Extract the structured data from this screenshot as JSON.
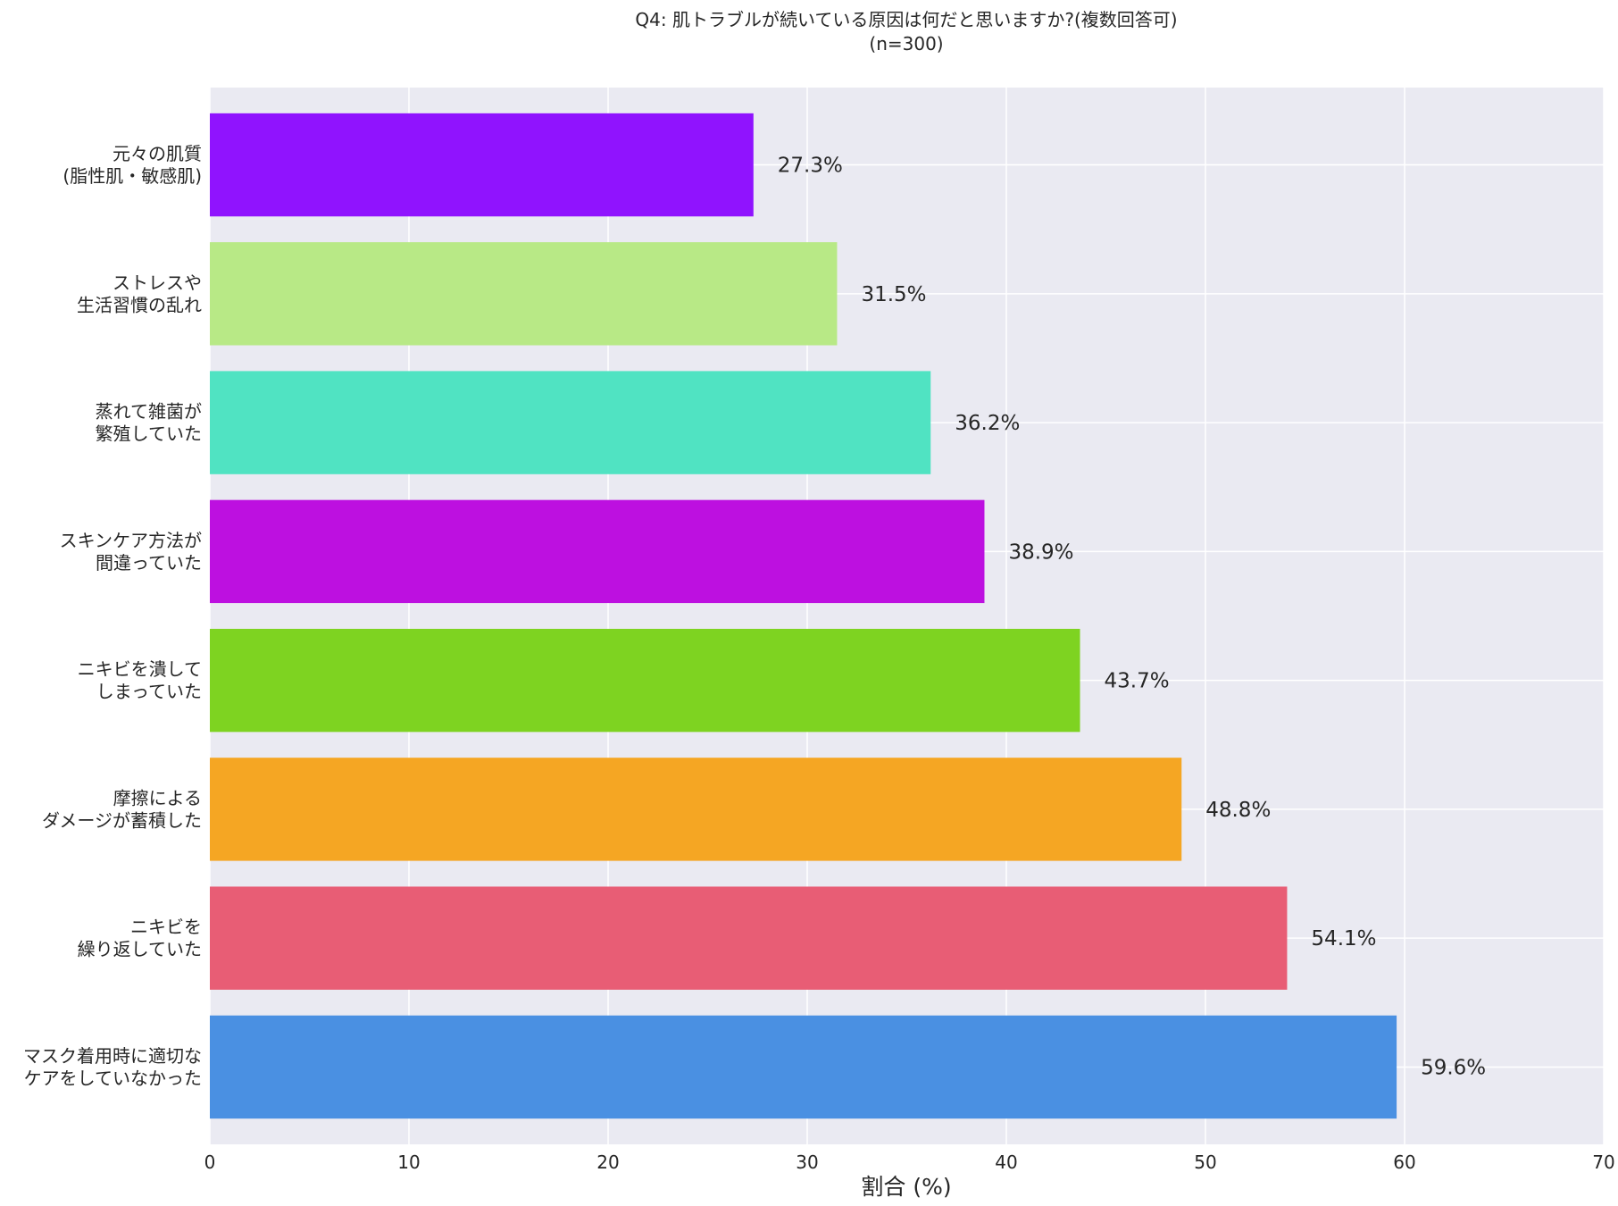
{
  "chart_data": {
    "type": "bar",
    "orientation": "horizontal",
    "title": "Q4: 肌トラブルが続いている原因は何だと思いますか?(複数回答可)",
    "subtitle": "(n=300)",
    "xlabel": "割合 (%)",
    "ylabel": "",
    "xlim": [
      0,
      70
    ],
    "x_ticks": [
      0,
      10,
      20,
      30,
      40,
      50,
      60,
      70
    ],
    "grid": true,
    "categories": [
      [
        "元々の肌質",
        "(脂性肌・敏感肌)"
      ],
      [
        "ストレスや",
        "生活習慣の乱れ"
      ],
      [
        "蒸れて雑菌が",
        "繁殖していた"
      ],
      [
        "スキンケア方法が",
        "間違っていた"
      ],
      [
        "ニキビを潰して",
        "しまっていた"
      ],
      [
        "摩擦による",
        "ダメージが蓄積した"
      ],
      [
        "ニキビを",
        "繰り返していた"
      ],
      [
        "マスク着用時に適切な",
        "ケアをしていなかった"
      ]
    ],
    "values": [
      27.3,
      31.5,
      36.2,
      38.9,
      43.7,
      48.8,
      54.1,
      59.6
    ],
    "value_labels": [
      "27.3%",
      "31.5%",
      "36.2%",
      "38.9%",
      "43.7%",
      "48.8%",
      "54.1%",
      "59.6%"
    ],
    "colors": [
      "#9013fe",
      "#b8e986",
      "#50e3c2",
      "#bd10e0",
      "#7ed321",
      "#f5a623",
      "#e85d75",
      "#4a90e2"
    ],
    "plot_background": "#eaeaf2",
    "grid_color": "#ffffff"
  }
}
